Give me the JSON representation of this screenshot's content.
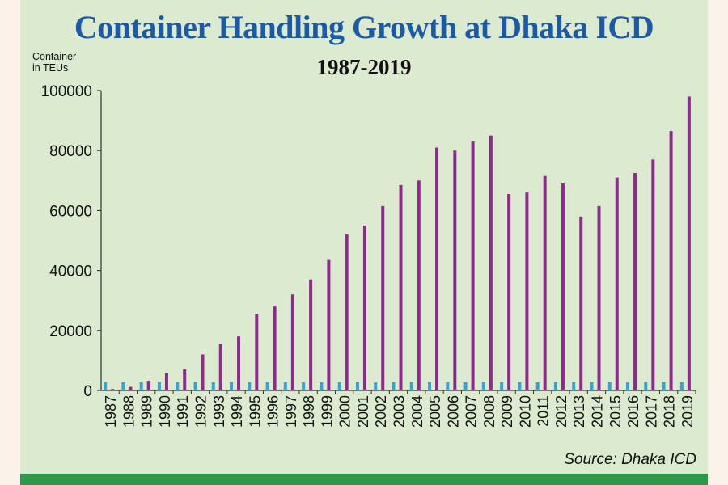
{
  "title": "Container Handling Growth at Dhaka ICD",
  "subtitle": "1987-2019",
  "ylabel_line1": "Container",
  "ylabel_line2": "in TEUs",
  "source": "Source: Dhaka ICD",
  "colors": {
    "background": "#fbf3ea",
    "panel": "#dcebd0",
    "title": "#1c5aa6",
    "bar": "#8e2a8e",
    "marker": "#33a4d4",
    "footer": "#2a9a4a"
  },
  "chart_data": {
    "type": "bar",
    "title": "Container Handling Growth at Dhaka ICD",
    "subtitle": "1987-2019",
    "ylabel": "Container in TEUs",
    "xlabel": "",
    "ylim": [
      0,
      100000
    ],
    "yticks": [
      0,
      20000,
      40000,
      60000,
      80000,
      100000
    ],
    "grid": false,
    "categories": [
      "1987",
      "1988",
      "1989",
      "1990",
      "1991",
      "1992",
      "1993",
      "1994",
      "1995",
      "1996",
      "1997",
      "1998",
      "1999",
      "2000",
      "2001",
      "2002",
      "2003",
      "2004",
      "2005",
      "2006",
      "2007",
      "2008",
      "2009",
      "2010",
      "2011",
      "2012",
      "2013",
      "2014",
      "2015",
      "2016",
      "2017",
      "2018",
      "2019"
    ],
    "values": [
      500,
      1200,
      3200,
      5800,
      7000,
      12000,
      15500,
      18000,
      25500,
      28000,
      32000,
      37000,
      43500,
      52000,
      55000,
      61500,
      68500,
      70000,
      81000,
      80000,
      83000,
      85000,
      65500,
      66000,
      71500,
      69000,
      58000,
      61500,
      71000,
      72500,
      77000,
      86500,
      98000
    ]
  }
}
